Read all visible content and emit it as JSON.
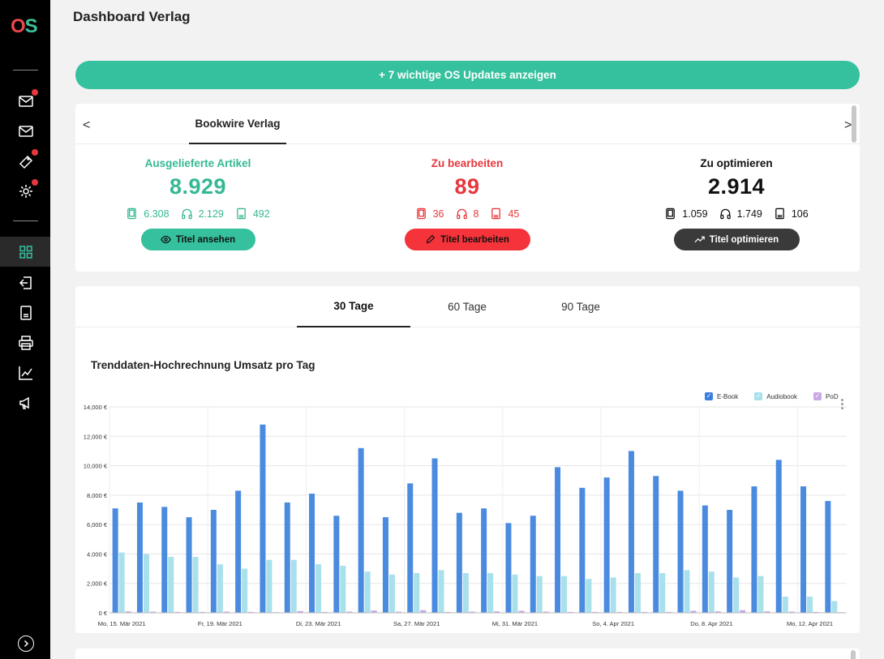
{
  "app": {
    "logo_o": "O",
    "logo_s": "S",
    "title": "Dashboard Verlag"
  },
  "sidebar": {
    "icons": [
      {
        "name": "mail-notification-icon",
        "badge": true
      },
      {
        "name": "mail-icon",
        "badge": false
      },
      {
        "name": "ticket-icon",
        "badge": true
      },
      {
        "name": "settings-icon",
        "badge": true
      },
      {
        "name": "dashboard-grid-icon",
        "active": true
      },
      {
        "name": "import-icon"
      },
      {
        "name": "book-icon"
      },
      {
        "name": "print-icon"
      },
      {
        "name": "chart-icon"
      },
      {
        "name": "megaphone-icon"
      }
    ]
  },
  "updates_button": {
    "label": "+ 7 wichtige OS Updates anzeigen"
  },
  "publisher": {
    "prev": "<",
    "next": ">",
    "tab": "Bookwire Verlag",
    "stats": [
      {
        "title": "Ausgelieferte Artikel",
        "value": "8.929",
        "ebook": "6.308",
        "audio": "2.129",
        "pod": "492",
        "button": "Titel ansehen",
        "color": "#35c19d"
      },
      {
        "title": "Zu bearbeiten",
        "value": "89",
        "ebook": "36",
        "audio": "8",
        "pod": "45",
        "button": "Titel bearbeiten",
        "color": "#f5333a"
      },
      {
        "title": "Zu optimieren",
        "value": "2.914",
        "ebook": "1.059",
        "audio": "1.749",
        "pod": "106",
        "button": "Titel optimieren",
        "color": "#3a3a3a"
      }
    ]
  },
  "range_tabs": [
    "30 Tage",
    "60 Tage",
    "90 Tage"
  ],
  "chart_title": "Trenddaten-Hochrechnung Umsatz pro Tag",
  "chart_data": {
    "type": "bar",
    "title": "Trenddaten-Hochrechnung Umsatz pro Tag",
    "xlabel": "",
    "ylabel": "",
    "ylim": [
      0,
      14000
    ],
    "grid": true,
    "legend_position": "top-right",
    "yticks": [
      "0 €",
      "2,000 €",
      "4,000 €",
      "6,000 €",
      "8,000 €",
      "10,000 €",
      "12,000 €",
      "14,000 €"
    ],
    "xtick_labels": [
      "Mo, 15. Mär 2021",
      "Fr, 19. Mär 2021",
      "Di, 23. Mär 2021",
      "Sa, 27. Mär 2021",
      "Mi, 31. Mär 2021",
      "So, 4. Apr 2021",
      "Do, 8. Apr 2021",
      "Mo, 12. Apr 2021"
    ],
    "categories": [
      "15.03",
      "16.03",
      "17.03",
      "18.03",
      "19.03",
      "20.03",
      "21.03",
      "22.03",
      "23.03",
      "24.03",
      "25.03",
      "26.03",
      "27.03",
      "28.03",
      "29.03",
      "30.03",
      "31.03",
      "01.04",
      "02.04",
      "03.04",
      "04.04",
      "05.04",
      "06.04",
      "07.04",
      "08.04",
      "09.04",
      "10.04",
      "11.04",
      "12.04",
      "13.04"
    ],
    "series": [
      {
        "name": "E-Book",
        "color": "#4a8be0",
        "values": [
          7100,
          7500,
          7200,
          6500,
          7000,
          8300,
          12800,
          7500,
          8100,
          6600,
          11200,
          6500,
          8800,
          10500,
          6800,
          7100,
          6100,
          6600,
          9900,
          8500,
          9200,
          11000,
          9300,
          8300,
          7300,
          7000,
          8600,
          10400,
          8600,
          7600
        ]
      },
      {
        "name": "Audiobook",
        "color": "#a8e0ec",
        "values": [
          4100,
          4000,
          3800,
          3800,
          3300,
          3000,
          3600,
          3600,
          3300,
          3200,
          2800,
          2600,
          2700,
          2900,
          2700,
          2700,
          2600,
          2500,
          2500,
          2300,
          2400,
          2700,
          2700,
          2900,
          2800,
          2400,
          2500,
          1100,
          1100,
          800
        ]
      },
      {
        "name": "PoD",
        "color": "#c9a8e6",
        "values": [
          100,
          80,
          60,
          60,
          80,
          60,
          40,
          120,
          60,
          80,
          160,
          80,
          180,
          60,
          80,
          100,
          140,
          80,
          60,
          60,
          60,
          60,
          60,
          140,
          100,
          180,
          100,
          80,
          60,
          40
        ]
      }
    ]
  }
}
